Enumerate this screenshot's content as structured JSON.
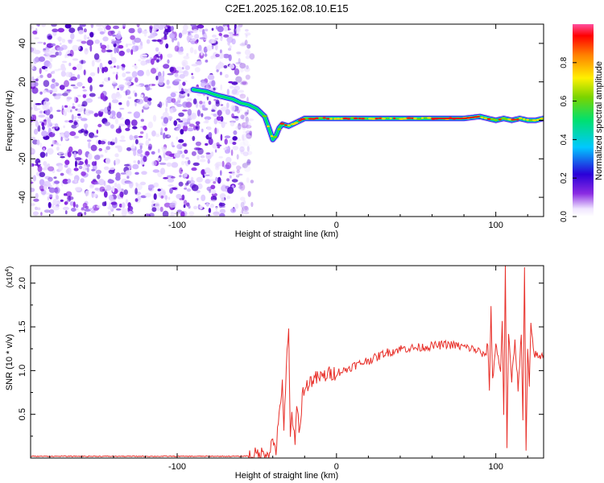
{
  "title": "C2E1.2025.162.08.10.E15",
  "chart_data": [
    {
      "type": "heatmap",
      "xlabel": "Height of straight line (km)",
      "ylabel": "Frequency (Hz)",
      "xlim": [
        -192,
        130
      ],
      "ylim": [
        -50,
        50
      ],
      "xticks": [
        -100,
        0,
        100
      ],
      "xtick_labels": [
        "-100",
        "0",
        "100"
      ],
      "yticks": [
        -40,
        -20,
        0,
        20,
        40
      ],
      "ytick_labels": [
        "-40",
        "-20",
        "0",
        "20",
        "40"
      ],
      "noise_region_x": [
        -192,
        -57
      ],
      "ridge": {
        "x": [
          -90,
          -82,
          -75,
          -70,
          -65,
          -60,
          -55,
          -50,
          -45,
          -42,
          -40,
          -38,
          -36,
          -34,
          -30,
          -25,
          -20,
          -10,
          0,
          20,
          40,
          60,
          80,
          90,
          95,
          100,
          105,
          110,
          115,
          120,
          125,
          130
        ],
        "freq": [
          16,
          15,
          13,
          12,
          11,
          9,
          8,
          6,
          2,
          -5,
          -10,
          -8,
          -4,
          -2,
          -3,
          -1,
          1,
          1,
          1,
          1,
          1,
          1,
          1,
          2,
          1,
          0,
          1,
          0,
          1,
          0,
          0,
          1
        ]
      },
      "colorbar": {
        "label": "Normalized spectral amplitude",
        "range": [
          0,
          1
        ],
        "ticks": [
          0.0,
          0.2,
          0.4,
          0.6,
          0.8
        ],
        "tick_labels": [
          "0.0",
          "0.2",
          "0.4",
          "0.6",
          "0.8"
        ]
      }
    },
    {
      "type": "line",
      "xlabel": "Height of straight line (km)",
      "ylabel": "SNR (10 * v/v)",
      "y_multiplier": "(x10",
      "y_multiplier_exp": "4",
      "y_multiplier_close": ")",
      "xlim": [
        -192,
        130
      ],
      "ylim": [
        0,
        2.2
      ],
      "xticks": [
        -100,
        0,
        100
      ],
      "xtick_labels": [
        "-100",
        "0",
        "100"
      ],
      "yticks": [
        0.5,
        1.0,
        1.5,
        2.0
      ],
      "ytick_labels": [
        "0.5",
        "1.0",
        "1.5",
        "2.0"
      ],
      "series": [
        {
          "color": "#e8302a",
          "x": [
            -192,
            -60,
            -52,
            -46,
            -42,
            -40,
            -38,
            -36,
            -34,
            -33,
            -31,
            -30,
            -29,
            -28,
            -26,
            -25,
            -23,
            -21,
            -20,
            -18,
            -15,
            -10,
            -5,
            0,
            5,
            10,
            15,
            20,
            25,
            30,
            35,
            40,
            50,
            60,
            70,
            80,
            85,
            90,
            93,
            95,
            96,
            97,
            98,
            100,
            103,
            104,
            105,
            106,
            107,
            108,
            110,
            112,
            114,
            116,
            117,
            118,
            119,
            120,
            121,
            122,
            124,
            127,
            130
          ],
          "y": [
            0.02,
            0.02,
            0.03,
            0.05,
            0.08,
            0.2,
            0.1,
            0.45,
            0.9,
            0.3,
            1.2,
            1.43,
            0.2,
            0.55,
            0.12,
            0.6,
            0.3,
            0.82,
            0.75,
            0.85,
            0.9,
            0.92,
            0.96,
            0.98,
            1.0,
            1.05,
            1.08,
            1.12,
            1.15,
            1.2,
            1.22,
            1.25,
            1.26,
            1.28,
            1.3,
            1.27,
            1.25,
            1.22,
            1.15,
            1.3,
            0.8,
            1.7,
            0.9,
            1.3,
            1.0,
            1.6,
            0.45,
            2.2,
            0.1,
            1.4,
            0.9,
            1.35,
            0.8,
            1.4,
            0.4,
            2.2,
            0.05,
            1.25,
            0.8,
            1.5,
            1.2,
            1.15,
            1.18
          ]
        }
      ]
    }
  ]
}
